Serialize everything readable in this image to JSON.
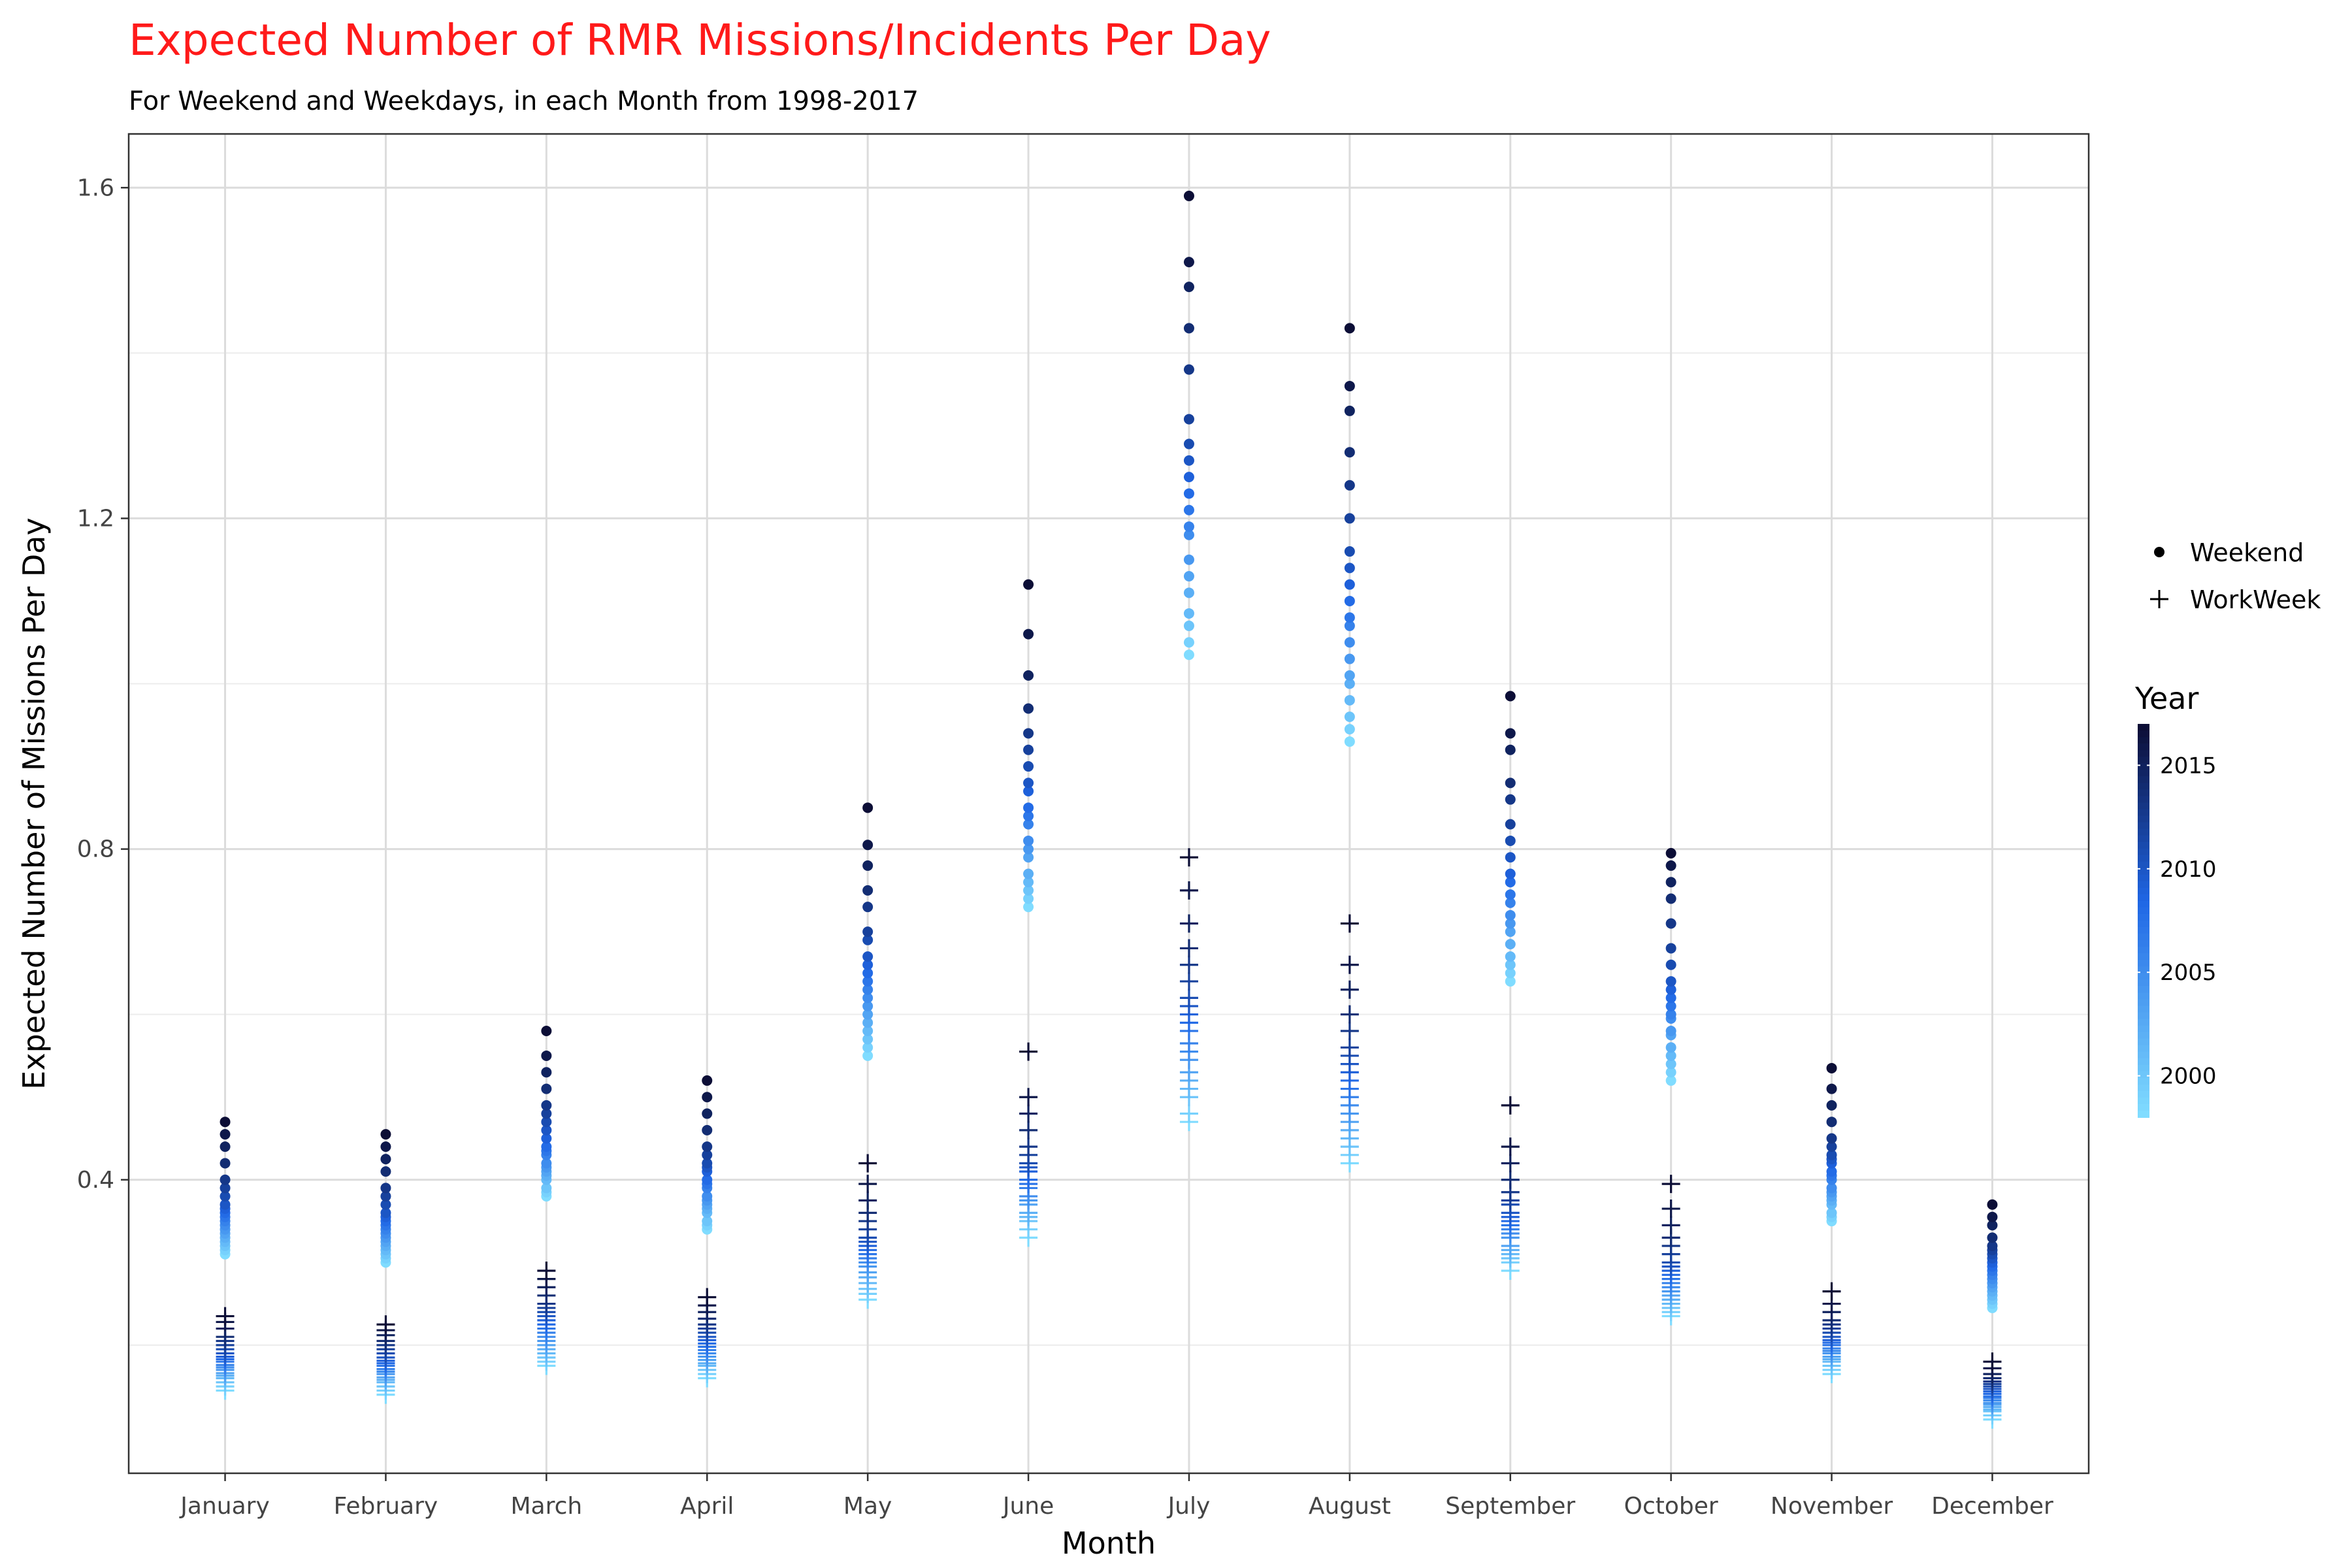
{
  "chart_data": {
    "type": "scatter",
    "title": "Expected Number of RMR Missions/Incidents Per Day",
    "subtitle": "For Weekend and Weekdays, in each Month from 1998-2017",
    "xlabel": "Month",
    "ylabel": "Expected Number of Missions Per Day",
    "categories": [
      "January",
      "February",
      "March",
      "April",
      "May",
      "June",
      "July",
      "August",
      "September",
      "October",
      "November",
      "December"
    ],
    "ylim": [
      0.045,
      1.665
    ],
    "yticks": [
      {
        "value": 0.4,
        "label": "0.4"
      },
      {
        "value": 0.8,
        "label": "0.8"
      },
      {
        "value": 1.2,
        "label": "1.2"
      },
      {
        "value": 1.6,
        "label": "1.6"
      }
    ],
    "y_minor_grid": [
      0.2,
      0.6,
      1.0,
      1.4
    ],
    "grid": true,
    "shape_legend": {
      "placement": "right",
      "items": [
        {
          "name": "Weekend",
          "shape": "dot"
        },
        {
          "name": "WorkWeek",
          "shape": "plus"
        }
      ]
    },
    "color_legend": {
      "title": "Year",
      "range": [
        1998,
        2017
      ],
      "ticks": [
        {
          "value": 2000,
          "label": "2000"
        },
        {
          "value": 2005,
          "label": "2005"
        },
        {
          "value": 2010,
          "label": "2010"
        },
        {
          "value": 2015,
          "label": "2015"
        }
      ],
      "color_low": "#80dcff",
      "color_mid": "#1f66e5",
      "color_high": "#0c0e36"
    },
    "series": [
      {
        "name": "Weekend",
        "shape": "dot",
        "years": [
          1998,
          1999,
          2000,
          2001,
          2002,
          2003,
          2004,
          2005,
          2006,
          2007,
          2008,
          2009,
          2010,
          2011,
          2012,
          2013,
          2014,
          2015,
          2016,
          2017
        ],
        "values": [
          [
            0.31,
            0.315,
            0.32,
            0.325,
            0.33,
            0.335,
            0.34,
            0.345,
            0.35,
            0.355,
            0.36,
            0.365,
            0.37,
            0.38,
            0.39,
            0.4,
            0.42,
            0.44,
            0.455,
            0.47
          ],
          [
            0.3,
            0.305,
            0.31,
            0.315,
            0.32,
            0.325,
            0.33,
            0.335,
            0.34,
            0.345,
            0.35,
            0.355,
            0.36,
            0.37,
            0.38,
            0.39,
            0.41,
            0.425,
            0.44,
            0.455
          ],
          [
            0.38,
            0.385,
            0.39,
            0.4,
            0.405,
            0.41,
            0.415,
            0.42,
            0.43,
            0.435,
            0.44,
            0.45,
            0.46,
            0.47,
            0.48,
            0.49,
            0.51,
            0.53,
            0.55,
            0.58
          ],
          [
            0.34,
            0.345,
            0.35,
            0.36,
            0.365,
            0.37,
            0.375,
            0.38,
            0.39,
            0.395,
            0.4,
            0.41,
            0.415,
            0.42,
            0.43,
            0.44,
            0.46,
            0.48,
            0.5,
            0.52
          ],
          [
            0.55,
            0.56,
            0.57,
            0.58,
            0.59,
            0.6,
            0.61,
            0.62,
            0.63,
            0.64,
            0.65,
            0.66,
            0.67,
            0.69,
            0.7,
            0.73,
            0.75,
            0.78,
            0.805,
            0.85
          ],
          [
            0.73,
            0.74,
            0.75,
            0.76,
            0.77,
            0.79,
            0.8,
            0.81,
            0.83,
            0.84,
            0.85,
            0.87,
            0.88,
            0.9,
            0.92,
            0.94,
            0.97,
            1.01,
            1.06,
            1.12
          ],
          [
            1.035,
            1.05,
            1.07,
            1.085,
            1.11,
            1.13,
            1.15,
            1.18,
            1.19,
            1.21,
            1.23,
            1.25,
            1.27,
            1.29,
            1.32,
            1.38,
            1.43,
            1.48,
            1.51,
            1.59
          ],
          [
            0.93,
            0.945,
            0.96,
            0.98,
            1.0,
            1.01,
            1.03,
            1.05,
            1.07,
            1.08,
            1.1,
            1.12,
            1.14,
            1.16,
            1.2,
            1.24,
            1.28,
            1.33,
            1.36,
            1.43
          ],
          [
            0.64,
            0.65,
            0.66,
            0.67,
            0.685,
            0.7,
            0.71,
            0.72,
            0.735,
            0.745,
            0.76,
            0.77,
            0.79,
            0.81,
            0.83,
            0.86,
            0.88,
            0.92,
            0.94,
            0.985
          ],
          [
            0.52,
            0.53,
            0.54,
            0.55,
            0.56,
            0.575,
            0.58,
            0.595,
            0.6,
            0.61,
            0.62,
            0.63,
            0.64,
            0.66,
            0.68,
            0.71,
            0.74,
            0.76,
            0.78,
            0.795
          ],
          [
            0.35,
            0.355,
            0.36,
            0.37,
            0.375,
            0.38,
            0.385,
            0.39,
            0.4,
            0.405,
            0.41,
            0.42,
            0.425,
            0.43,
            0.44,
            0.45,
            0.47,
            0.49,
            0.51,
            0.535
          ],
          [
            0.245,
            0.25,
            0.255,
            0.26,
            0.265,
            0.27,
            0.275,
            0.28,
            0.285,
            0.29,
            0.295,
            0.3,
            0.305,
            0.31,
            0.315,
            0.32,
            0.33,
            0.345,
            0.355,
            0.37
          ]
        ]
      },
      {
        "name": "WorkWeek",
        "shape": "plus",
        "years": [
          1998,
          1999,
          2000,
          2001,
          2002,
          2003,
          2004,
          2005,
          2006,
          2007,
          2008,
          2009,
          2010,
          2011,
          2012,
          2013,
          2014,
          2015,
          2016,
          2017
        ],
        "values": [
          [
            0.145,
            0.15,
            0.155,
            0.16,
            0.163,
            0.166,
            0.17,
            0.173,
            0.176,
            0.18,
            0.183,
            0.186,
            0.19,
            0.195,
            0.2,
            0.205,
            0.21,
            0.22,
            0.228,
            0.235
          ],
          [
            0.14,
            0.145,
            0.15,
            0.155,
            0.158,
            0.161,
            0.165,
            0.168,
            0.171,
            0.175,
            0.178,
            0.181,
            0.185,
            0.19,
            0.195,
            0.2,
            0.205,
            0.212,
            0.218,
            0.225
          ],
          [
            0.175,
            0.18,
            0.185,
            0.19,
            0.195,
            0.2,
            0.205,
            0.21,
            0.215,
            0.22,
            0.225,
            0.23,
            0.235,
            0.24,
            0.245,
            0.25,
            0.26,
            0.27,
            0.28,
            0.29
          ],
          [
            0.16,
            0.165,
            0.17,
            0.175,
            0.178,
            0.182,
            0.186,
            0.19,
            0.194,
            0.198,
            0.202,
            0.206,
            0.21,
            0.215,
            0.22,
            0.225,
            0.232,
            0.24,
            0.248,
            0.258
          ],
          [
            0.255,
            0.262,
            0.268,
            0.275,
            0.282,
            0.288,
            0.295,
            0.3,
            0.305,
            0.31,
            0.315,
            0.32,
            0.325,
            0.33,
            0.34,
            0.35,
            0.36,
            0.375,
            0.395,
            0.42
          ],
          [
            0.33,
            0.34,
            0.35,
            0.355,
            0.36,
            0.37,
            0.375,
            0.38,
            0.39,
            0.395,
            0.4,
            0.41,
            0.415,
            0.42,
            0.43,
            0.44,
            0.46,
            0.48,
            0.5,
            0.555
          ],
          [
            0.47,
            0.48,
            0.5,
            0.51,
            0.52,
            0.53,
            0.545,
            0.555,
            0.565,
            0.58,
            0.59,
            0.6,
            0.61,
            0.62,
            0.64,
            0.66,
            0.68,
            0.71,
            0.75,
            0.79
          ],
          [
            0.42,
            0.43,
            0.44,
            0.45,
            0.46,
            0.47,
            0.48,
            0.49,
            0.5,
            0.51,
            0.52,
            0.53,
            0.54,
            0.55,
            0.56,
            0.58,
            0.6,
            0.63,
            0.66,
            0.71
          ],
          [
            0.29,
            0.3,
            0.305,
            0.31,
            0.315,
            0.32,
            0.33,
            0.335,
            0.34,
            0.345,
            0.35,
            0.355,
            0.36,
            0.37,
            0.375,
            0.385,
            0.4,
            0.42,
            0.44,
            0.49
          ],
          [
            0.235,
            0.24,
            0.245,
            0.25,
            0.255,
            0.26,
            0.265,
            0.27,
            0.275,
            0.28,
            0.285,
            0.29,
            0.295,
            0.3,
            0.31,
            0.32,
            0.33,
            0.345,
            0.365,
            0.395
          ],
          [
            0.165,
            0.17,
            0.175,
            0.18,
            0.183,
            0.186,
            0.19,
            0.193,
            0.196,
            0.2,
            0.203,
            0.206,
            0.21,
            0.215,
            0.22,
            0.225,
            0.23,
            0.24,
            0.25,
            0.265
          ],
          [
            0.11,
            0.115,
            0.12,
            0.122,
            0.125,
            0.128,
            0.13,
            0.133,
            0.136,
            0.138,
            0.141,
            0.144,
            0.147,
            0.15,
            0.153,
            0.156,
            0.16,
            0.165,
            0.172,
            0.18
          ]
        ]
      }
    ]
  }
}
